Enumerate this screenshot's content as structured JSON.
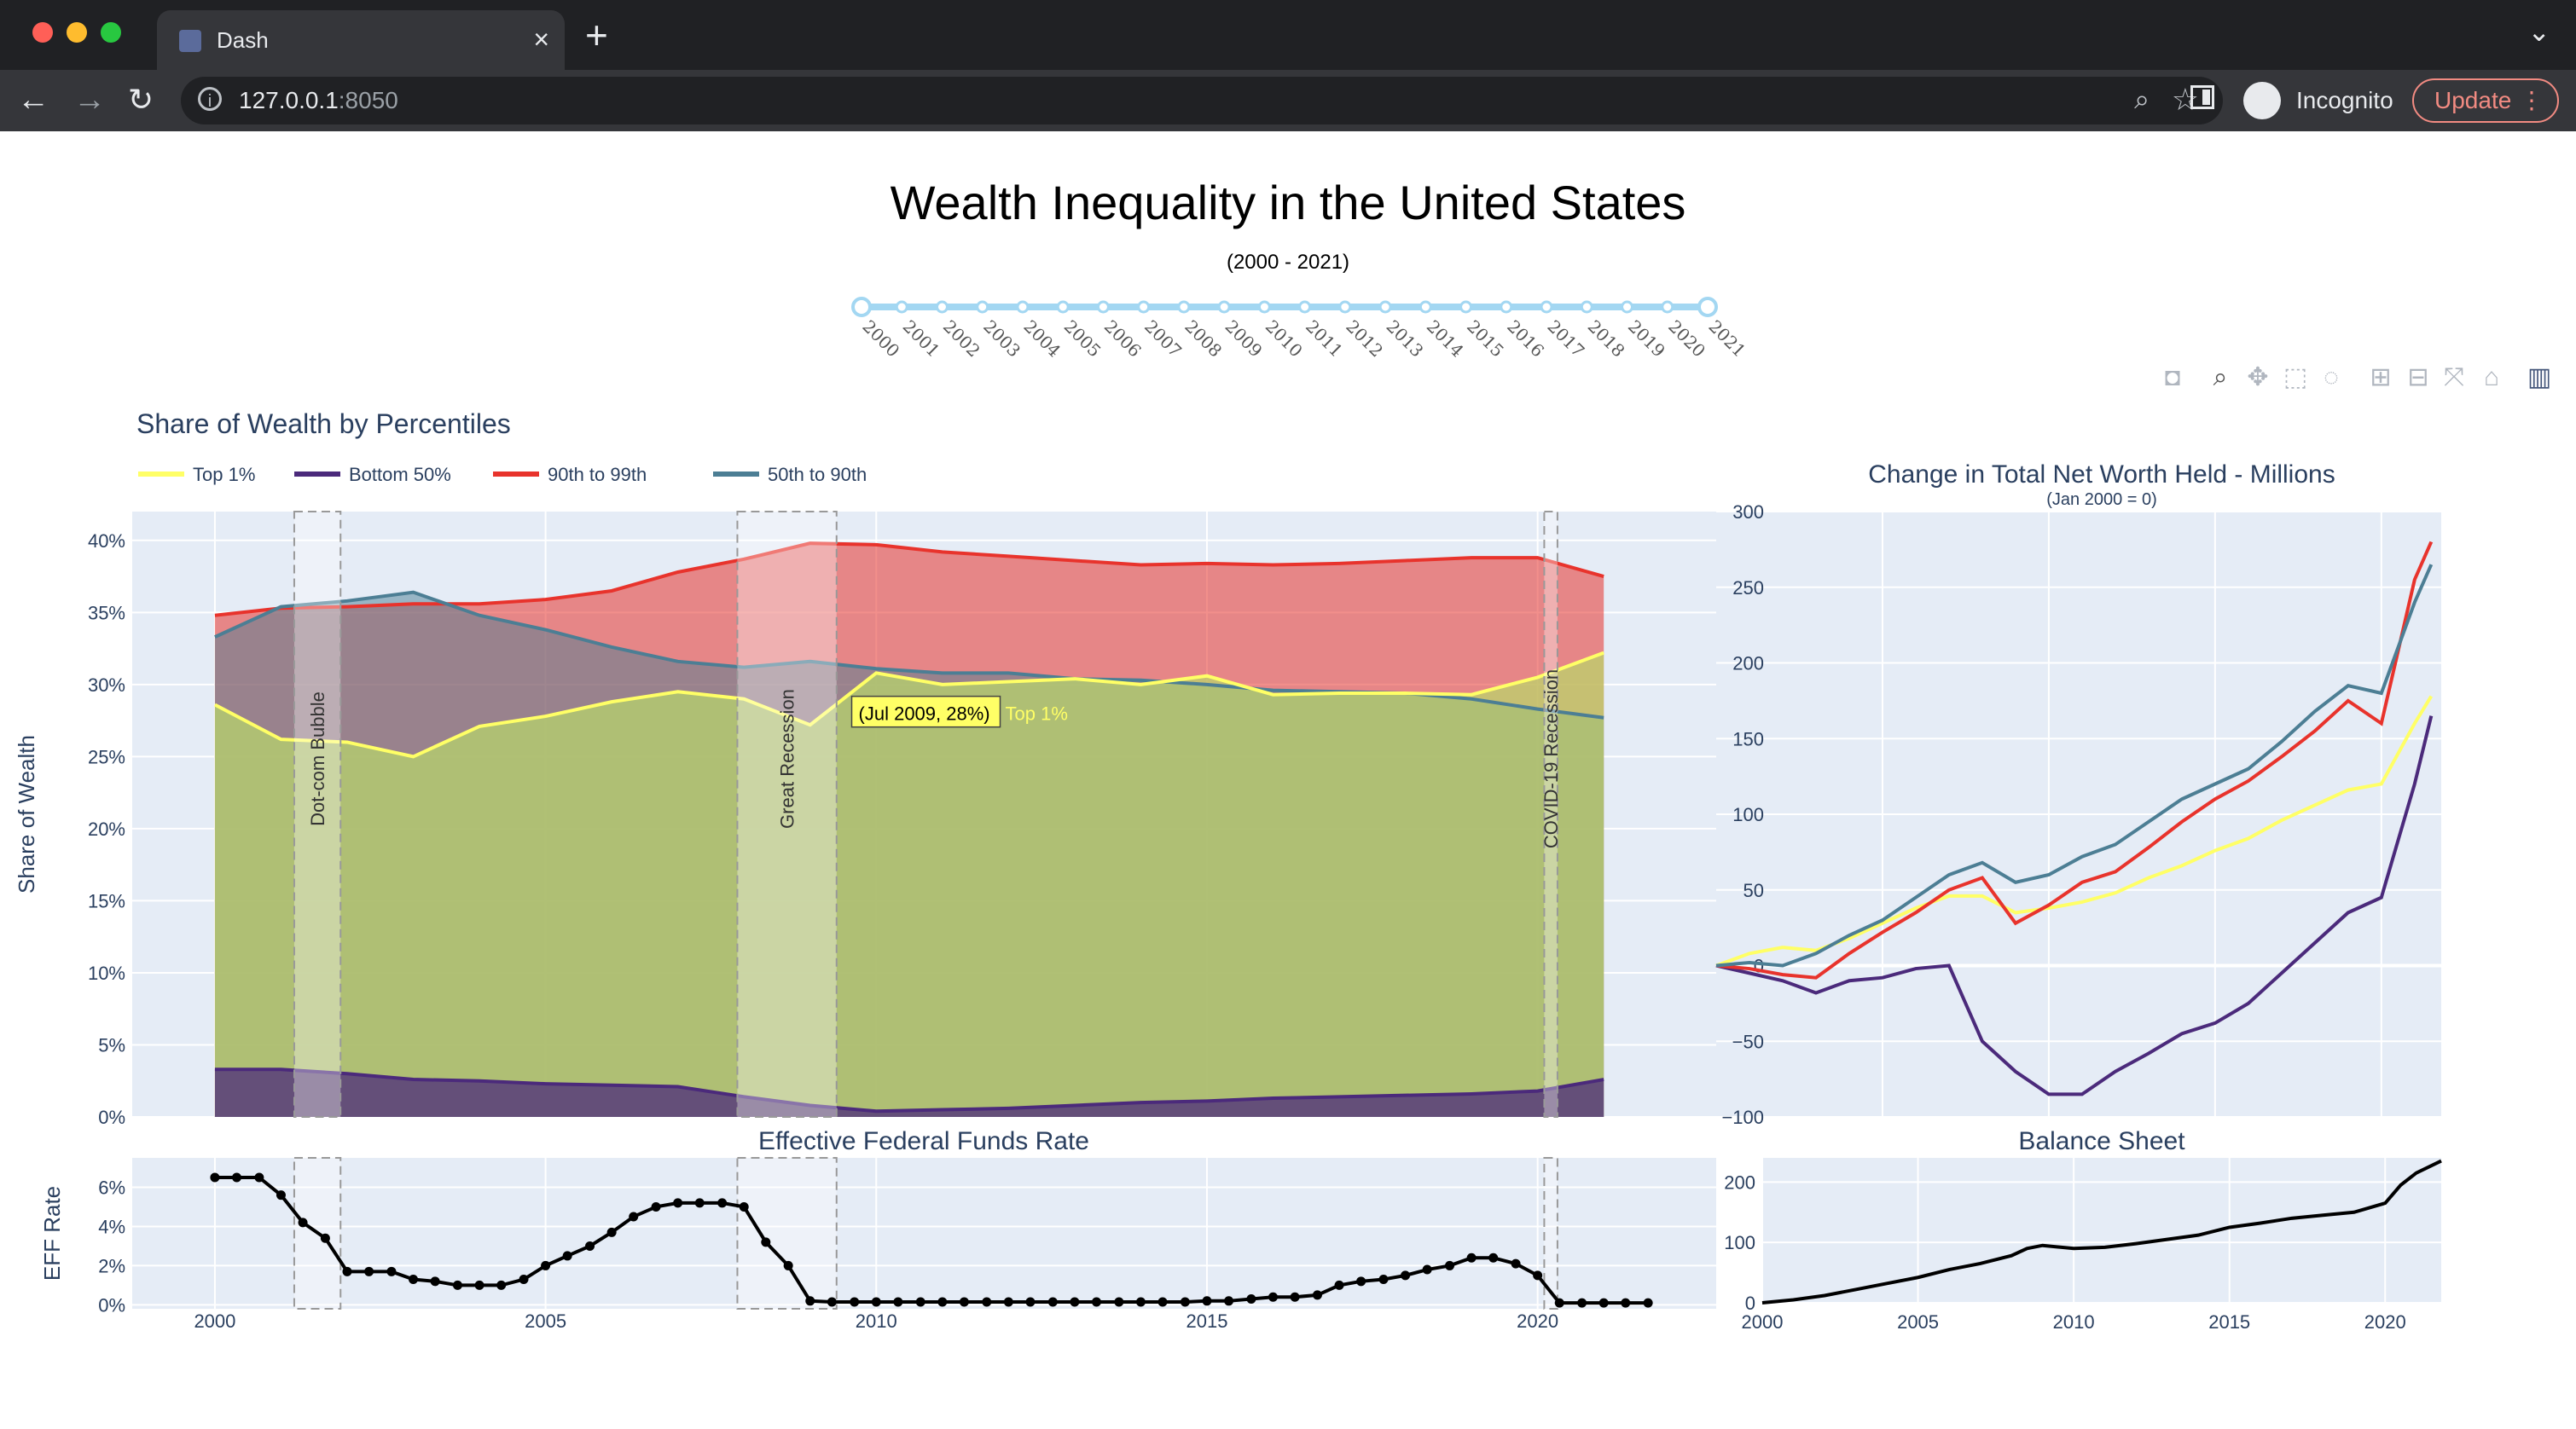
{
  "browser": {
    "tab_title": "Dash",
    "url_host": "127.0.0.1",
    "url_port": ":8050",
    "incognito_label": "Incognito",
    "update_label": "Update"
  },
  "page": {
    "title": "Wealth Inequality in the United States",
    "subtitle": "(2000 - 2021)"
  },
  "slider": {
    "marks": [
      "2000",
      "2001",
      "2002",
      "2003",
      "2004",
      "2005",
      "2006",
      "2007",
      "2008",
      "2009",
      "2010",
      "2011",
      "2012",
      "2013",
      "2014",
      "2015",
      "2016",
      "2017",
      "2018",
      "2019",
      "2020",
      "2021"
    ],
    "selected": [
      "2000",
      "2021"
    ]
  },
  "colors": {
    "top1": "#ffff66",
    "bottom50": "#4b2a7b",
    "p90_99": "#e8332c",
    "p50_90": "#4c7e94",
    "plot_bg": "#e5ecf6",
    "accent": "#5b6b9b"
  },
  "chart_data": [
    {
      "type": "area",
      "title": "Share of Wealth by Percentiles",
      "ylabel": "Share of Wealth",
      "ylim": [
        0,
        42
      ],
      "ytick_labels": [
        "0%",
        "5%",
        "10%",
        "15%",
        "20%",
        "25%",
        "30%",
        "35%",
        "40%"
      ],
      "legend": [
        "Top 1%",
        "Bottom 50%",
        "90th to 99th",
        "50th to 90th"
      ],
      "x": [
        2000,
        2001,
        2002,
        2003,
        2004,
        2005,
        2006,
        2007,
        2008,
        2009,
        2010,
        2011,
        2012,
        2013,
        2014,
        2015,
        2016,
        2017,
        2018,
        2019,
        2020,
        2021
      ],
      "series": [
        {
          "name": "Top 1%",
          "values": [
            28.6,
            26.2,
            26.0,
            25.0,
            27.1,
            27.8,
            28.8,
            29.5,
            29.0,
            27.2,
            30.8,
            30.0,
            30.2,
            30.4,
            30.0,
            30.6,
            29.3,
            29.4,
            29.4,
            29.3,
            30.5,
            32.2
          ]
        },
        {
          "name": "Bottom 50%",
          "values": [
            3.3,
            3.3,
            3.0,
            2.6,
            2.5,
            2.3,
            2.2,
            2.1,
            1.4,
            0.8,
            0.4,
            0.5,
            0.6,
            0.8,
            1.0,
            1.1,
            1.3,
            1.4,
            1.5,
            1.6,
            1.8,
            2.6
          ]
        },
        {
          "name": "90th to 99th",
          "values": [
            34.8,
            35.3,
            35.4,
            35.6,
            35.6,
            35.9,
            36.5,
            37.8,
            38.7,
            39.8,
            39.7,
            39.2,
            38.9,
            38.6,
            38.3,
            38.4,
            38.3,
            38.4,
            38.6,
            38.8,
            38.8,
            37.5
          ]
        },
        {
          "name": "50th to 90th",
          "values": [
            33.3,
            35.4,
            35.8,
            36.4,
            34.8,
            33.8,
            32.6,
            31.6,
            31.2,
            31.6,
            31.1,
            30.8,
            30.8,
            30.4,
            30.3,
            30.0,
            29.6,
            29.5,
            29.4,
            29.0,
            28.3,
            27.7
          ]
        }
      ],
      "annotations": [
        {
          "text": "Dot-com Bubble",
          "x0": 2001.2,
          "x1": 2001.9
        },
        {
          "text": "Great Recession",
          "x0": 2007.9,
          "x1": 2009.4
        },
        {
          "text": "COVID-19 Recession",
          "x0": 2020.1,
          "x1": 2020.3
        }
      ],
      "hover": {
        "text": "(Jul 2009, 28%)",
        "series": "Top 1%",
        "x": 2009.5,
        "y": 28
      }
    },
    {
      "type": "line",
      "title": "Change in Total Net Worth Held - Millions",
      "subtitle": "(Jan 2000 = 0)",
      "ylim": [
        -100,
        300
      ],
      "ytick_labels": [
        "−100",
        "−50",
        "0",
        "50",
        "100",
        "150",
        "200",
        "250",
        "300"
      ],
      "x": [
        2000,
        2001,
        2002,
        2003,
        2004,
        2005,
        2006,
        2007,
        2008,
        2009,
        2010,
        2011,
        2012,
        2013,
        2014,
        2015,
        2016,
        2017,
        2018,
        2019,
        2020,
        2021,
        2021.5
      ],
      "series": [
        {
          "name": "Top 1%",
          "values": [
            0,
            8,
            12,
            10,
            18,
            28,
            38,
            46,
            46,
            35,
            38,
            42,
            48,
            58,
            66,
            76,
            84,
            96,
            106,
            116,
            120,
            160,
            178
          ]
        },
        {
          "name": "Bottom 50%",
          "values": [
            0,
            -5,
            -10,
            -18,
            -10,
            -8,
            -2,
            0,
            -50,
            -70,
            -85,
            -85,
            -70,
            -58,
            -45,
            -38,
            -25,
            -5,
            15,
            35,
            45,
            120,
            165
          ]
        },
        {
          "name": "90th to 99th",
          "values": [
            0,
            -2,
            -6,
            -8,
            8,
            22,
            35,
            50,
            58,
            28,
            40,
            55,
            62,
            78,
            95,
            110,
            122,
            138,
            155,
            175,
            160,
            255,
            280
          ]
        },
        {
          "name": "50th to 90th",
          "values": [
            0,
            2,
            0,
            8,
            20,
            30,
            45,
            60,
            68,
            55,
            60,
            72,
            80,
            95,
            110,
            120,
            130,
            148,
            168,
            185,
            180,
            240,
            265
          ]
        }
      ]
    },
    {
      "type": "line",
      "title": "Effective Federal Funds Rate",
      "ylabel": "EFF Rate",
      "ylim": [
        -0.2,
        7.5
      ],
      "ytick_labels": [
        "0%",
        "2%",
        "4%",
        "6%"
      ],
      "xtick_labels": [
        "2000",
        "2005",
        "2010",
        "2015",
        "2020"
      ],
      "x": [
        2000,
        2000.33,
        2000.67,
        2001,
        2001.33,
        2001.67,
        2002,
        2002.33,
        2002.67,
        2003,
        2003.33,
        2003.67,
        2004,
        2004.33,
        2004.67,
        2005,
        2005.33,
        2005.67,
        2006,
        2006.33,
        2006.67,
        2007,
        2007.33,
        2007.67,
        2008,
        2008.33,
        2008.67,
        2009,
        2009.33,
        2009.67,
        2010,
        2010.33,
        2010.67,
        2011,
        2011.33,
        2011.67,
        2012,
        2012.33,
        2012.67,
        2013,
        2013.33,
        2013.67,
        2014,
        2014.33,
        2014.67,
        2015,
        2015.33,
        2015.67,
        2016,
        2016.33,
        2016.67,
        2017,
        2017.33,
        2017.67,
        2018,
        2018.33,
        2018.67,
        2019,
        2019.33,
        2019.67,
        2020,
        2020.33,
        2020.67,
        2021,
        2021.33,
        2021.67
      ],
      "values": [
        6.5,
        6.5,
        6.5,
        5.6,
        4.2,
        3.4,
        1.7,
        1.7,
        1.7,
        1.3,
        1.2,
        1.0,
        1.0,
        1.0,
        1.3,
        2.0,
        2.5,
        3.0,
        3.7,
        4.5,
        5.0,
        5.2,
        5.2,
        5.2,
        5.0,
        3.2,
        2.0,
        0.2,
        0.15,
        0.15,
        0.15,
        0.15,
        0.15,
        0.15,
        0.15,
        0.15,
        0.15,
        0.15,
        0.15,
        0.15,
        0.15,
        0.15,
        0.15,
        0.15,
        0.15,
        0.2,
        0.2,
        0.3,
        0.4,
        0.4,
        0.5,
        1.0,
        1.2,
        1.3,
        1.5,
        1.8,
        2.0,
        2.4,
        2.4,
        2.1,
        1.5,
        0.1,
        0.1,
        0.1,
        0.1,
        0.1
      ]
    },
    {
      "type": "line",
      "title": "Balance Sheet",
      "ylim": [
        0,
        240
      ],
      "ytick_labels": [
        "0",
        "100",
        "200"
      ],
      "xtick_labels": [
        "2000",
        "2005",
        "2010",
        "2015",
        "2020"
      ],
      "x": [
        2000,
        2001,
        2002,
        2003,
        2004,
        2005,
        2006,
        2007,
        2008,
        2008.5,
        2009,
        2010,
        2011,
        2012,
        2013,
        2014,
        2015,
        2016,
        2017,
        2018,
        2019,
        2020,
        2020.5,
        2021,
        2021.8
      ],
      "values": [
        0,
        5,
        12,
        22,
        32,
        42,
        55,
        65,
        78,
        90,
        95,
        90,
        92,
        98,
        105,
        112,
        125,
        132,
        140,
        145,
        150,
        165,
        195,
        215,
        235
      ]
    }
  ]
}
